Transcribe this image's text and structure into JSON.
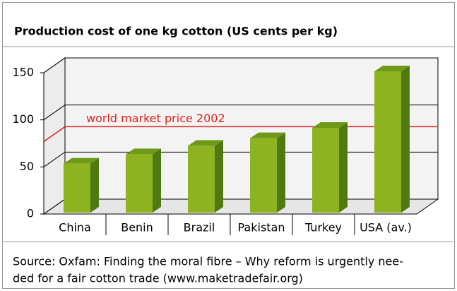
{
  "chart_data": {
    "type": "bar3d",
    "title": "Production cost of one kg cotton (US cents per kg)",
    "categories": [
      "China",
      "Benin",
      "Brazil",
      "Pakistan",
      "Turkey",
      "USA (av.)"
    ],
    "values": [
      52,
      62,
      71,
      79,
      90,
      150
    ],
    "color": "#8db320",
    "ylim": [
      0,
      150
    ],
    "yticks": [
      0,
      50,
      100,
      150
    ],
    "grid": true,
    "annotation": {
      "label": "world market price 2002",
      "value": 77,
      "color": "#e0201b"
    },
    "source": [
      "Source: Oxfam: Finding the moral fibre – Why reform is urgently nee-",
      "ded for a fair cotton trade (www.maketradefair.org)"
    ]
  }
}
